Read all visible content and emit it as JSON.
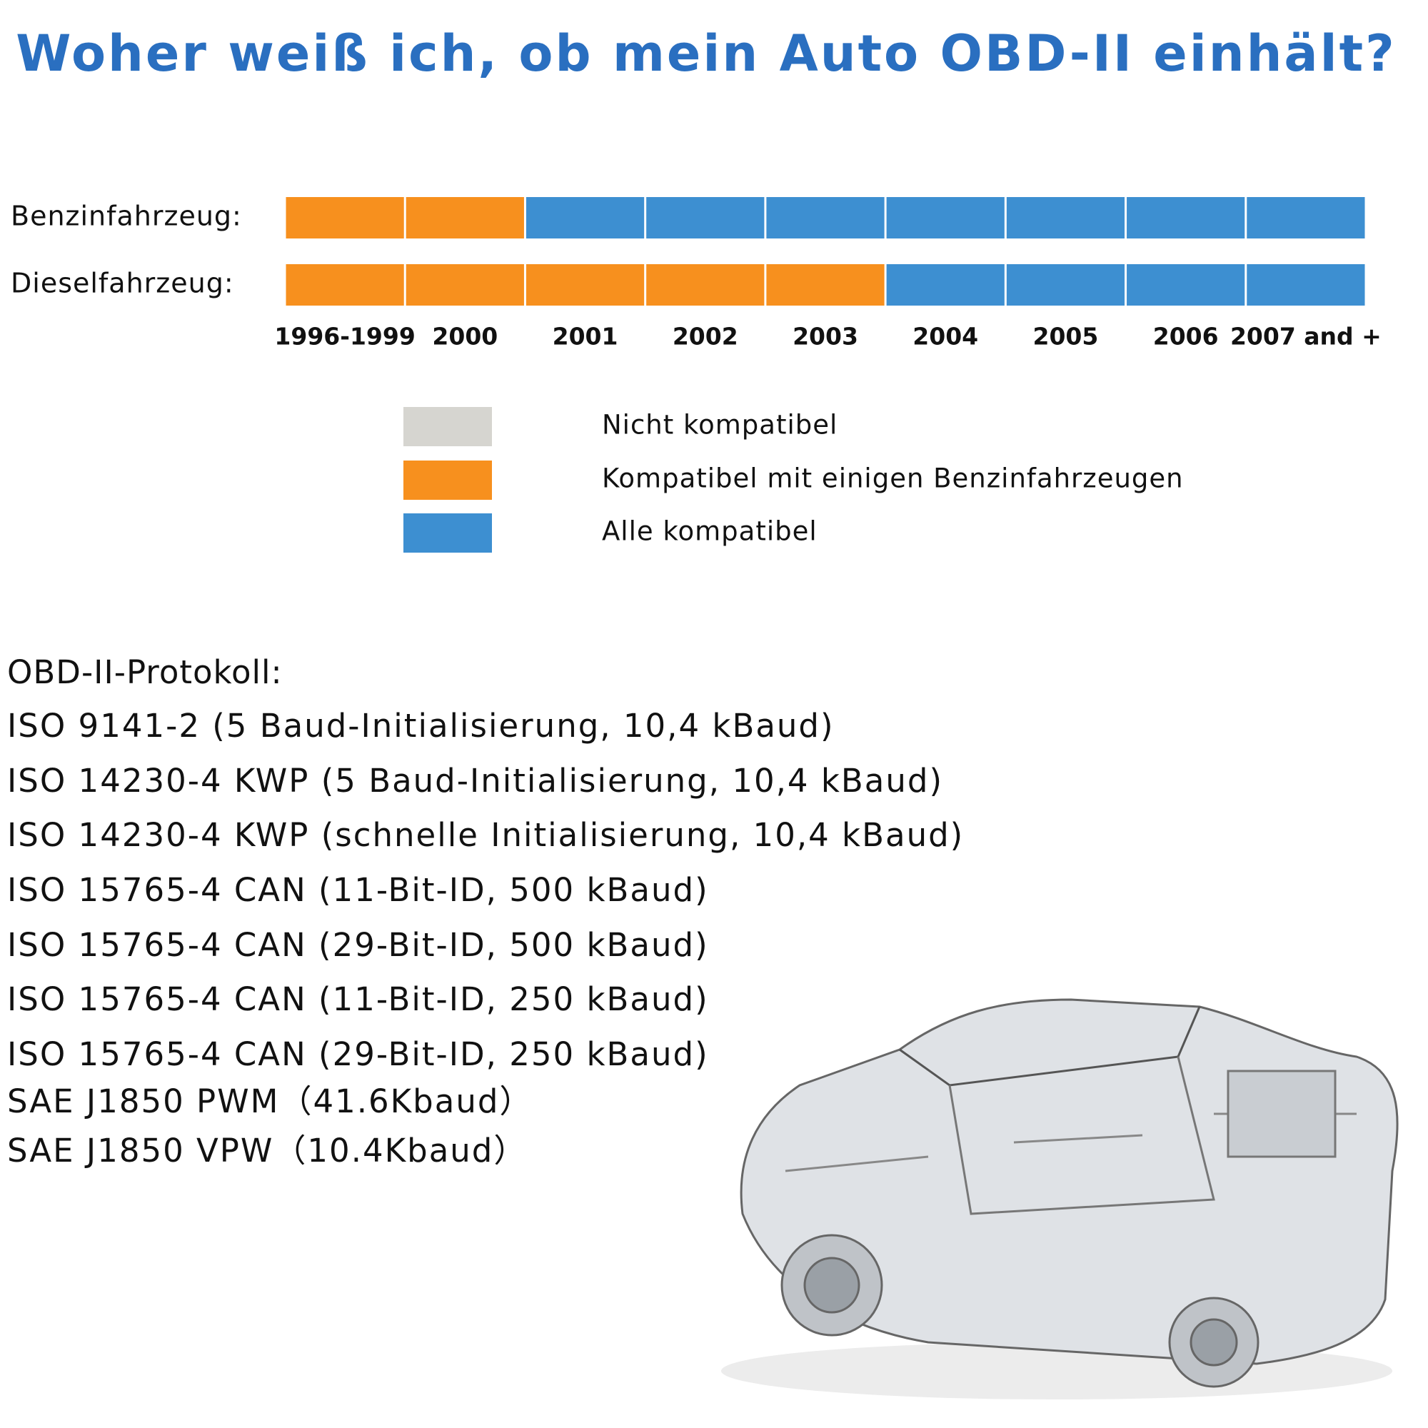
{
  "title": "Woher weiß ich, ob mein Auto OBD-II einhält?",
  "rows": [
    {
      "label": "Benzinfahrzeug:",
      "cells": [
        "#f7901e",
        "#f7901e",
        "#3d8fd1",
        "#3d8fd1",
        "#3d8fd1",
        "#3d8fd1",
        "#3d8fd1",
        "#3d8fd1",
        "#3d8fd1"
      ]
    },
    {
      "label": "Dieselfahrzeug:",
      "cells": [
        "#f7901e",
        "#f7901e",
        "#f7901e",
        "#f7901e",
        "#f7901e",
        "#3d8fd1",
        "#3d8fd1",
        "#3d8fd1",
        "#3d8fd1"
      ]
    }
  ],
  "years": [
    "1996-1999",
    "2000",
    "2001",
    "2002",
    "2003",
    "2004",
    "2005",
    "2006",
    "2007 and +"
  ],
  "legend": [
    {
      "color": "#d6d5d0",
      "label": "Nicht kompatibel"
    },
    {
      "color": "#f7901e",
      "label": "Kompatibel mit einigen Benzinfahrzeugen"
    },
    {
      "color": "#3d8fd1",
      "label": "Alle kompatibel"
    }
  ],
  "protocols": {
    "heading": "OBD-II-Protokoll:",
    "items": [
      "ISO 9141-2 (5 Baud-Initialisierung, 10,4 kBaud)",
      "ISO 14230-4 KWP (5 Baud-Initialisierung, 10,4 kBaud)",
      "ISO 14230-4 KWP (schnelle Initialisierung, 10,4 kBaud)",
      "ISO 15765-4 CAN (11-Bit-ID, 500 kBaud)",
      "ISO 15765-4 CAN (29-Bit-ID, 500 kBaud)",
      "ISO 15765-4 CAN (11-Bit-ID, 250 kBaud)",
      "ISO 15765-4 CAN (29-Bit-ID, 250 kBaud)",
      "SAE J1850 PWM（41.6Kbaud）",
      "SAE J1850 VPW（10.4Kbaud）"
    ]
  }
}
